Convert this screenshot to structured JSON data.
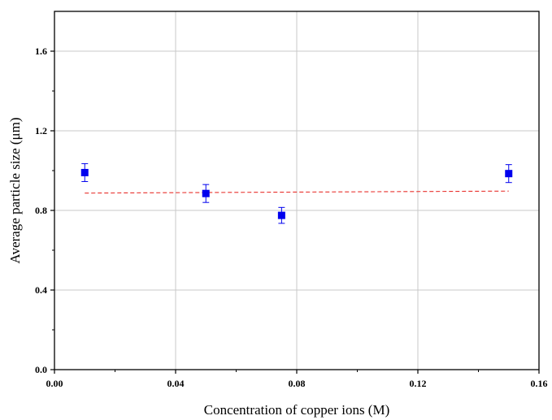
{
  "chart_data": {
    "type": "scatter",
    "title": "",
    "xlabel": "Concentration of copper ions (M)",
    "ylabel": "Average particle size (μm)",
    "xlim": [
      0.0,
      0.16
    ],
    "ylim": [
      0.0,
      1.8
    ],
    "x_ticks": [
      0.0,
      0.04,
      0.08,
      0.12,
      0.16
    ],
    "x_tick_labels": [
      "0.00",
      "0.04",
      "0.08",
      "0.12",
      "0.16"
    ],
    "y_ticks": [
      0.0,
      0.4,
      0.8,
      1.2,
      1.6
    ],
    "y_tick_labels": [
      "0.0",
      "0.4",
      "0.8",
      "1.2",
      "1.6"
    ],
    "grid": true,
    "legend": "none",
    "series": [
      {
        "marker": "square",
        "color": "#0000ee",
        "x": [
          0.01,
          0.05,
          0.075,
          0.15
        ],
        "y": [
          0.99,
          0.885,
          0.775,
          0.985
        ],
        "error": [
          0.045,
          0.045,
          0.04,
          0.045
        ]
      }
    ],
    "trendline": {
      "style": "dashed",
      "color": "#e8302c",
      "x": [
        0.01,
        0.15
      ],
      "y": [
        0.887,
        0.897
      ]
    }
  }
}
